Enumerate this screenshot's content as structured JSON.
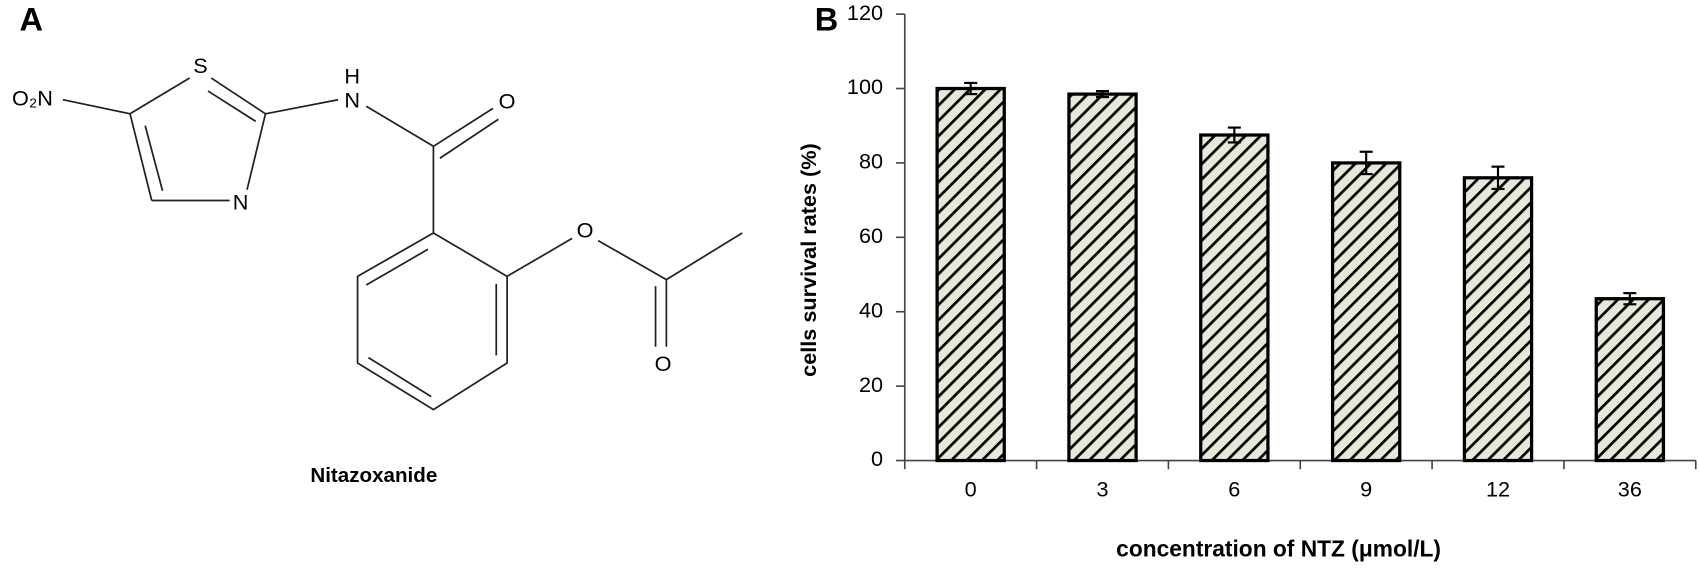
{
  "panel_a": {
    "letter": "A",
    "atoms": [
      "O₂N",
      "S",
      "H",
      "N",
      "O",
      "N",
      "O",
      "O"
    ],
    "name": "Nitazoxanide"
  },
  "chart_data": {
    "type": "bar",
    "letter": "B",
    "categories": [
      "0",
      "3",
      "6",
      "9",
      "12",
      "36"
    ],
    "values": [
      100,
      98.5,
      87.5,
      80,
      76,
      43.5
    ],
    "errors": [
      1.5,
      0.8,
      2,
      3,
      3,
      1.5
    ],
    "color": "#e8e8d8",
    "hatch": true,
    "x_label": "concentration of NTZ (μmol/L)",
    "y_label": "cells survival rates (%)",
    "ylim": [
      0,
      120
    ],
    "yticks": [
      0,
      20,
      40,
      60,
      80,
      100,
      120
    ]
  }
}
